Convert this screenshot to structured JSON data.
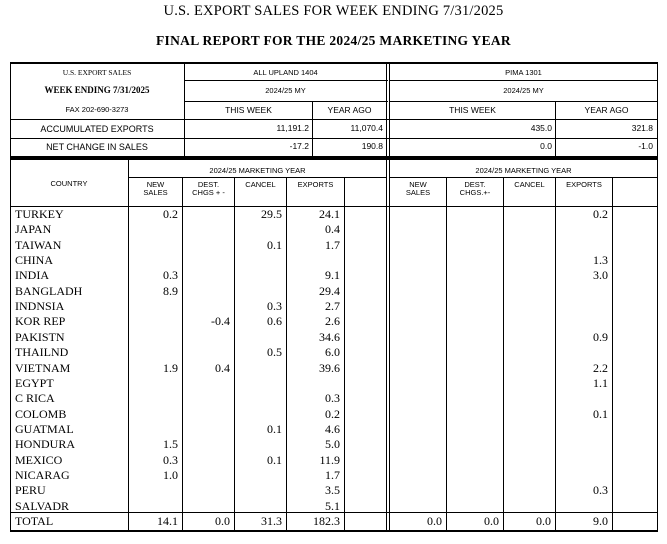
{
  "titles": {
    "line1": "U.S. EXPORT SALES FOR WEEK ENDING 7/31/2025",
    "line2": "FINAL REPORT FOR THE 2024/25 MARKETING YEAR"
  },
  "info": {
    "label": "U.S. EXPORT SALES",
    "week": "WEEK ENDING 7/31/2025",
    "fax": "FAX 202-690-3273"
  },
  "upland": {
    "name": "ALL UPLAND 1404",
    "my": "2024/25 MY",
    "this_week": "THIS WEEK",
    "year_ago": "YEAR AGO",
    "accumulated_this_week": "11,191.2",
    "accumulated_year_ago": "11,070.4",
    "net_change_this_week": "-17.2",
    "net_change_year_ago": "190.8"
  },
  "pima": {
    "name": "PIMA 1301",
    "my": "2024/25 MY",
    "this_week": "THIS WEEK",
    "year_ago": "YEAR AGO",
    "accumulated_this_week": "435.0",
    "accumulated_year_ago": "321.8",
    "net_change_this_week": "0.0",
    "net_change_year_ago": "-1.0"
  },
  "summary_labels": {
    "accumulated": "ACCUMULATED EXPORTS",
    "net_change": "NET CHANGE IN SALES"
  },
  "detail_header": {
    "country": "COUNTRY",
    "upland_my": "2024/25 MARKETING YEAR",
    "pima_my": "2024/25 MARKETING YEAR",
    "new_sales_1": "NEW",
    "new_sales_2": "SALES",
    "dest_1": "DEST.",
    "dest_upland_2": "CHGS + -",
    "dest_pima_2": "CHGS.+-",
    "cancel": "CANCEL",
    "exports": "EXPORTS"
  },
  "rows": [
    {
      "country": "TURKEY",
      "u_new": "0.2",
      "u_dest": "",
      "u_cancel": "29.5",
      "u_exports": "24.1",
      "p_new": "",
      "p_dest": "",
      "p_cancel": "",
      "p_exports": "0.2"
    },
    {
      "country": "JAPAN",
      "u_new": "",
      "u_dest": "",
      "u_cancel": "",
      "u_exports": "0.4",
      "p_new": "",
      "p_dest": "",
      "p_cancel": "",
      "p_exports": ""
    },
    {
      "country": "TAIWAN",
      "u_new": "",
      "u_dest": "",
      "u_cancel": "0.1",
      "u_exports": "1.7",
      "p_new": "",
      "p_dest": "",
      "p_cancel": "",
      "p_exports": ""
    },
    {
      "country": "CHINA",
      "u_new": "",
      "u_dest": "",
      "u_cancel": "",
      "u_exports": "",
      "p_new": "",
      "p_dest": "",
      "p_cancel": "",
      "p_exports": "1.3"
    },
    {
      "country": "INDIA",
      "u_new": "0.3",
      "u_dest": "",
      "u_cancel": "",
      "u_exports": "9.1",
      "p_new": "",
      "p_dest": "",
      "p_cancel": "",
      "p_exports": "3.0"
    },
    {
      "country": "BANGLADH",
      "u_new": "8.9",
      "u_dest": "",
      "u_cancel": "",
      "u_exports": "29.4",
      "p_new": "",
      "p_dest": "",
      "p_cancel": "",
      "p_exports": ""
    },
    {
      "country": "INDNSIA",
      "u_new": "",
      "u_dest": "",
      "u_cancel": "0.3",
      "u_exports": "2.7",
      "p_new": "",
      "p_dest": "",
      "p_cancel": "",
      "p_exports": ""
    },
    {
      "country": "KOR REP",
      "u_new": "",
      "u_dest": "-0.4",
      "u_cancel": "0.6",
      "u_exports": "2.6",
      "p_new": "",
      "p_dest": "",
      "p_cancel": "",
      "p_exports": ""
    },
    {
      "country": "PAKISTN",
      "u_new": "",
      "u_dest": "",
      "u_cancel": "",
      "u_exports": "34.6",
      "p_new": "",
      "p_dest": "",
      "p_cancel": "",
      "p_exports": "0.9"
    },
    {
      "country": "THAILND",
      "u_new": "",
      "u_dest": "",
      "u_cancel": "0.5",
      "u_exports": "6.0",
      "p_new": "",
      "p_dest": "",
      "p_cancel": "",
      "p_exports": ""
    },
    {
      "country": "VIETNAM",
      "u_new": "1.9",
      "u_dest": "0.4",
      "u_cancel": "",
      "u_exports": "39.6",
      "p_new": "",
      "p_dest": "",
      "p_cancel": "",
      "p_exports": "2.2"
    },
    {
      "country": "EGYPT",
      "u_new": "",
      "u_dest": "",
      "u_cancel": "",
      "u_exports": "",
      "p_new": "",
      "p_dest": "",
      "p_cancel": "",
      "p_exports": "1.1"
    },
    {
      "country": "C RICA",
      "u_new": "",
      "u_dest": "",
      "u_cancel": "",
      "u_exports": "0.3",
      "p_new": "",
      "p_dest": "",
      "p_cancel": "",
      "p_exports": ""
    },
    {
      "country": "COLOMB",
      "u_new": "",
      "u_dest": "",
      "u_cancel": "",
      "u_exports": "0.2",
      "p_new": "",
      "p_dest": "",
      "p_cancel": "",
      "p_exports": "0.1"
    },
    {
      "country": "GUATMAL",
      "u_new": "",
      "u_dest": "",
      "u_cancel": "0.1",
      "u_exports": "4.6",
      "p_new": "",
      "p_dest": "",
      "p_cancel": "",
      "p_exports": ""
    },
    {
      "country": "HONDURA",
      "u_new": "1.5",
      "u_dest": "",
      "u_cancel": "",
      "u_exports": "5.0",
      "p_new": "",
      "p_dest": "",
      "p_cancel": "",
      "p_exports": ""
    },
    {
      "country": "MEXICO",
      "u_new": "0.3",
      "u_dest": "",
      "u_cancel": "0.1",
      "u_exports": "11.9",
      "p_new": "",
      "p_dest": "",
      "p_cancel": "",
      "p_exports": ""
    },
    {
      "country": "NICARAG",
      "u_new": "1.0",
      "u_dest": "",
      "u_cancel": "",
      "u_exports": "1.7",
      "p_new": "",
      "p_dest": "",
      "p_cancel": "",
      "p_exports": ""
    },
    {
      "country": "PERU",
      "u_new": "",
      "u_dest": "",
      "u_cancel": "",
      "u_exports": "3.5",
      "p_new": "",
      "p_dest": "",
      "p_cancel": "",
      "p_exports": "0.3"
    },
    {
      "country": "SALVADR",
      "u_new": "",
      "u_dest": "",
      "u_cancel": "",
      "u_exports": "5.1",
      "p_new": "",
      "p_dest": "",
      "p_cancel": "",
      "p_exports": ""
    }
  ],
  "total": {
    "label": "TOTAL",
    "u_new": "14.1",
    "u_dest": "0.0",
    "u_cancel": "31.3",
    "u_exports": "182.3",
    "p_new": "0.0",
    "p_dest": "0.0",
    "p_cancel": "0.0",
    "p_exports": "9.0"
  }
}
